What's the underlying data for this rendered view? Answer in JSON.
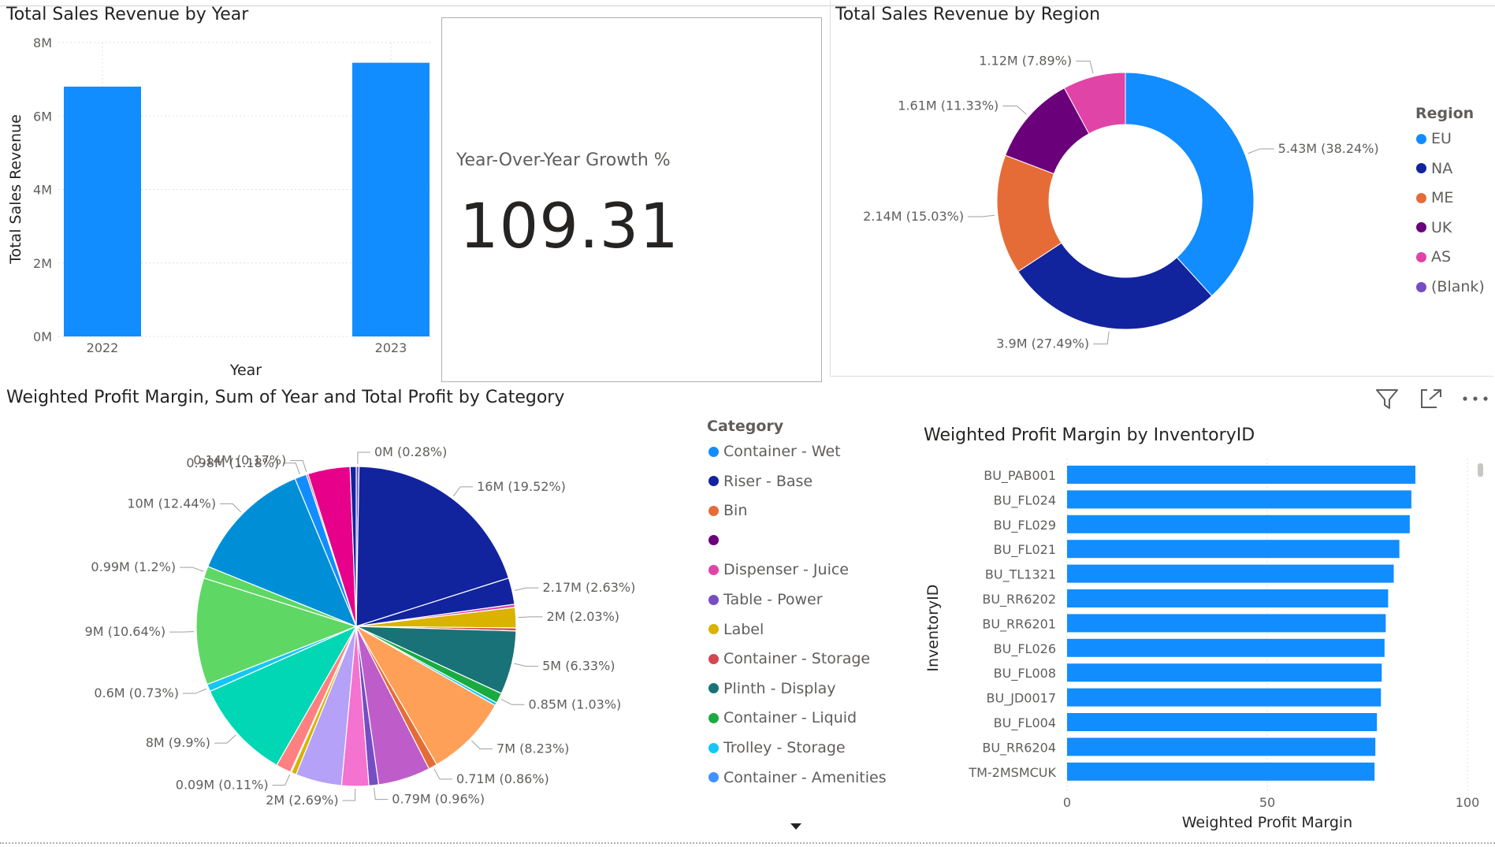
{
  "visuals": {
    "year_chart_title": "Total Sales Revenue by Year",
    "region_chart_title": "Total Sales Revenue by Region",
    "category_chart_title": "Weighted Profit Margin, Sum of Year and Total Profit by Category",
    "inventory_chart_title": "Weighted Profit Margin by InventoryID"
  },
  "kpi_card": {
    "label": "Year-Over-Year Growth %",
    "value": "109.31"
  },
  "toolbar": {
    "filter_icon": "filter-icon",
    "focus_icon": "focus-mode-icon",
    "more_icon": "more-options-icon"
  },
  "chart_data": [
    {
      "id": "revenue_by_year",
      "type": "bar",
      "title": "Total Sales Revenue by Year",
      "xlabel": "Year",
      "ylabel": "Total Sales Revenue",
      "categories": [
        "2022",
        "2023"
      ],
      "values": [
        6.8,
        7.45
      ],
      "value_unit": "M",
      "yticks": [
        "0M",
        "2M",
        "4M",
        "6M",
        "8M"
      ],
      "ylim": [
        0,
        8
      ],
      "grid": true,
      "color": "#118DFF"
    },
    {
      "id": "revenue_by_region",
      "type": "pie",
      "title": "Total Sales Revenue by Region",
      "legend_title": "Region",
      "legend_position": "right",
      "slices": [
        {
          "name": "EU",
          "value": 38.24,
          "label": "5.43M (38.24%)",
          "color": "#118DFF"
        },
        {
          "name": "NA",
          "value": 27.49,
          "label": "3.9M (27.49%)",
          "color": "#12239E"
        },
        {
          "name": "ME",
          "value": 15.03,
          "label": "2.14M (15.03%)",
          "color": "#E66C37"
        },
        {
          "name": "UK",
          "value": 11.33,
          "label": "1.61M (11.33%)",
          "color": "#6B007B"
        },
        {
          "name": "AS",
          "value": 7.89,
          "label": "1.12M (7.89%)",
          "color": "#E044A7"
        },
        {
          "name": "(Blank)",
          "value": 0,
          "label": "",
          "color": "#744EC2"
        }
      ]
    },
    {
      "id": "profit_by_category",
      "type": "pie",
      "title": "Weighted Profit Margin, Sum of Year and Total Profit by Category",
      "legend_title": "Category",
      "legend_position": "right",
      "legend": [
        {
          "name": "Container - Wet",
          "color": "#118DFF"
        },
        {
          "name": "Riser - Base",
          "color": "#12239E"
        },
        {
          "name": "Bin",
          "color": "#E66C37"
        },
        {
          "name": "",
          "color": "#6B007B"
        },
        {
          "name": "Dispenser - Juice",
          "color": "#E044A7"
        },
        {
          "name": "Table - Power",
          "color": "#744EC2"
        },
        {
          "name": "Label",
          "color": "#D9B300"
        },
        {
          "name": "Container - Storage",
          "color": "#D64550"
        },
        {
          "name": "Plinth - Display",
          "color": "#197278"
        },
        {
          "name": "Container - Liquid",
          "color": "#1AAB40"
        },
        {
          "name": "Trolley - Storage",
          "color": "#15C6F4"
        },
        {
          "name": "Container - Amenities",
          "color": "#4092FF"
        }
      ],
      "slices": [
        {
          "value": 0.28,
          "label": "0M (0.28%)",
          "color": "#744EC2"
        },
        {
          "value": 19.52,
          "label": "16M (19.52%)",
          "color": "#12239E"
        },
        {
          "value": 2.63,
          "label": "2.17M (2.63%)",
          "color": "#12239E"
        },
        {
          "value": 0.3,
          "label": "",
          "color": "#E044A7"
        },
        {
          "value": 2.03,
          "label": "2M (2.03%)",
          "color": "#D9B300"
        },
        {
          "value": 0.3,
          "label": "",
          "color": "#D64550"
        },
        {
          "value": 6.33,
          "label": "5M (6.33%)",
          "color": "#197278"
        },
        {
          "value": 1.03,
          "label": "0.85M (1.03%)",
          "color": "#1AAB40"
        },
        {
          "value": 0.3,
          "label": "",
          "color": "#15C6F4"
        },
        {
          "value": 8.23,
          "label": "7M (8.23%)",
          "color": "#FFA058"
        },
        {
          "value": 0.86,
          "label": "0.71M (0.86%)",
          "color": "#E66C37"
        },
        {
          "value": 5.2,
          "label": "",
          "color": "#BE5DC9"
        },
        {
          "value": 0.96,
          "label": "0.79M (0.96%)",
          "color": "#744EC2"
        },
        {
          "value": 2.69,
          "label": "2M (2.69%)",
          "color": "#F472D0"
        },
        {
          "value": 4.6,
          "label": "",
          "color": "#B5A1F7"
        },
        {
          "value": 0.5,
          "label": "",
          "color": "#D9B300"
        },
        {
          "value": 0.11,
          "label": "0.09M (0.11%)",
          "color": "#E66C37"
        },
        {
          "value": 1.5,
          "label": "",
          "color": "#FF8080"
        },
        {
          "value": 9.9,
          "label": "8M (9.9%)",
          "color": "#01D7B4"
        },
        {
          "value": 0.73,
          "label": "0.6M (0.73%)",
          "color": "#15C6F4"
        },
        {
          "value": 10.64,
          "label": "9M (10.64%)",
          "color": "#5FD764"
        },
        {
          "value": 1.2,
          "label": "0.99M (1.2%)",
          "color": "#5FD764"
        },
        {
          "value": 12.44,
          "label": "10M (12.44%)",
          "color": "#008FD6"
        },
        {
          "value": 1.18,
          "label": "0.98M (1.18%)",
          "color": "#118DFF"
        },
        {
          "value": 0.17,
          "label": "0.14M (0.17%)",
          "color": "#D64550"
        },
        {
          "value": 4.2,
          "label": "",
          "color": "#E6008A"
        },
        {
          "value": 0.6,
          "label": "",
          "color": "#12239E"
        }
      ]
    },
    {
      "id": "margin_by_inventory",
      "type": "bar",
      "orientation": "horizontal",
      "title": "Weighted Profit Margin by InventoryID",
      "xlabel": "Weighted Profit Margin",
      "ylabel": "InventoryID",
      "xlim": [
        0,
        100
      ],
      "xticks": [
        "0",
        "50",
        "100"
      ],
      "grid": true,
      "color": "#118DFF",
      "categories": [
        "BU_PAB001",
        "BU_FL024",
        "BU_FL029",
        "BU_FL021",
        "BU_TL1321",
        "BU_RR6202",
        "BU_RR6201",
        "BU_FL026",
        "BU_FL008",
        "BU_JD0017",
        "BU_FL004",
        "BU_RR6204",
        "TM-2MSMCUK"
      ],
      "values": [
        87,
        86,
        85.6,
        83,
        81.6,
        80.2,
        79.6,
        79.3,
        78.6,
        78.4,
        77.4,
        77,
        76.8
      ]
    }
  ]
}
